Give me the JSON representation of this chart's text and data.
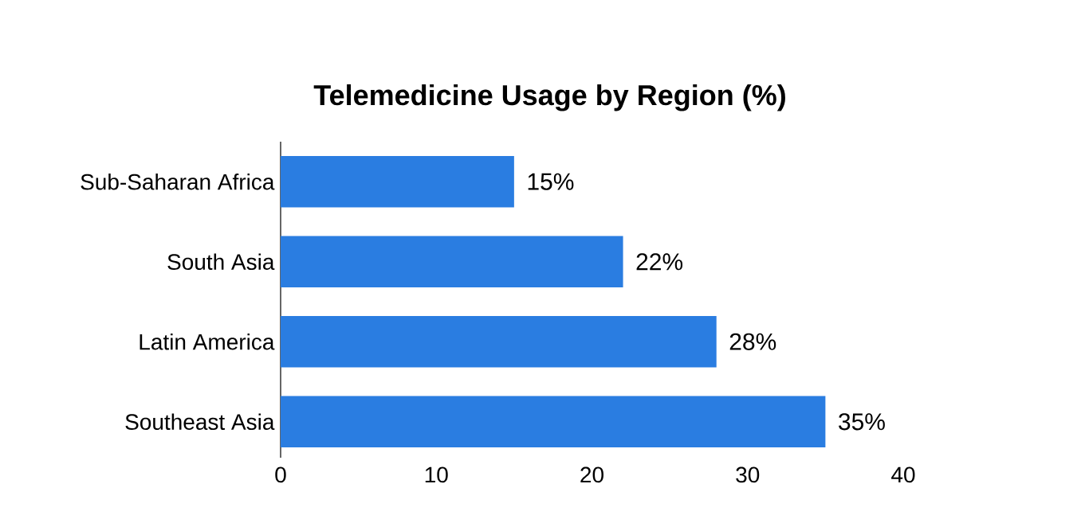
{
  "chart_data": {
    "type": "bar",
    "orientation": "horizontal",
    "title": "Telemedicine Usage by Region     (%)",
    "categories": [
      "Sub-Saharan Africa",
      "South Asia",
      "Latin America",
      "Southeast Asia"
    ],
    "values": [
      15,
      22,
      28,
      35
    ],
    "value_labels": [
      "15%",
      "22%",
      "28%",
      "35%"
    ],
    "color": "#2a7de1",
    "xlim": [
      0,
      40
    ],
    "xticks": [
      0,
      10,
      20,
      30,
      40
    ]
  }
}
